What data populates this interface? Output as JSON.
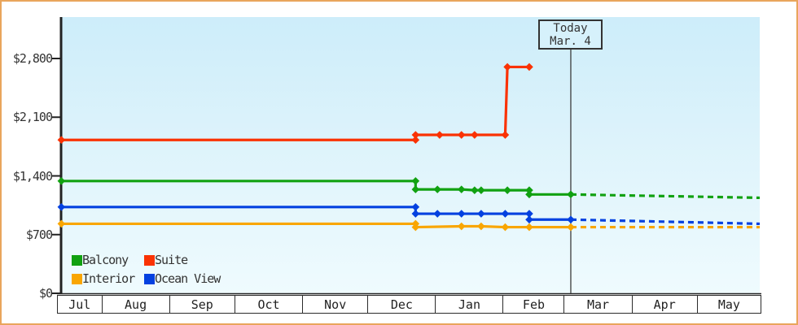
{
  "chart_data": {
    "type": "line",
    "title": "",
    "y_axis": {
      "tick_labels": [
        "$0",
        "$700",
        "$1,400",
        "$2,100",
        "$2,800"
      ],
      "tick_values": [
        0,
        700,
        1400,
        2100,
        2800
      ],
      "ylim": [
        0,
        3290
      ],
      "grid": "off"
    },
    "x_axis": {
      "start": "Jul 12",
      "end": "May 30",
      "months": [
        {
          "label": "Jul",
          "days": 31
        },
        {
          "label": "Aug",
          "days": 31
        },
        {
          "label": "Sep",
          "days": 30
        },
        {
          "label": "Oct",
          "days": 31
        },
        {
          "label": "Nov",
          "days": 30
        },
        {
          "label": "Dec",
          "days": 31
        },
        {
          "label": "Jan",
          "days": 31
        },
        {
          "label": "Feb",
          "days": 28
        },
        {
          "label": "Mar",
          "days": 31
        },
        {
          "label": "Apr",
          "days": 30
        },
        {
          "label": "May",
          "days": 31
        }
      ]
    },
    "today_marker": {
      "line1": "Today",
      "line2": "Mar. 4",
      "date": "Mar 4"
    },
    "legend_position": "bottom-left",
    "series": [
      {
        "name": "Balcony",
        "color": "#11a111",
        "points": [
          {
            "date": "Jul 14",
            "value": 1339
          },
          {
            "date": "Dec 23",
            "value": 1339
          },
          {
            "date": "Dec 23",
            "value": 1239
          },
          {
            "date": "Jan 2",
            "value": 1239
          },
          {
            "date": "Jan 13",
            "value": 1239
          },
          {
            "date": "Jan 19",
            "value": 1229
          },
          {
            "date": "Jan 22",
            "value": 1229
          },
          {
            "date": "Feb 3",
            "value": 1229
          },
          {
            "date": "Feb 13",
            "value": 1229
          },
          {
            "date": "Feb 13",
            "value": 1179
          },
          {
            "date": "Mar 4",
            "value": 1179
          }
        ],
        "projected": [
          {
            "date": "Mar 4",
            "value": 1179
          },
          {
            "date": "May 30",
            "value": 1139
          }
        ]
      },
      {
        "name": "Suite",
        "color": "#fa3203",
        "points": [
          {
            "date": "Jul 14",
            "value": 1829
          },
          {
            "date": "Dec 23",
            "value": 1829
          },
          {
            "date": "Dec 23",
            "value": 1889
          },
          {
            "date": "Jan 3",
            "value": 1889
          },
          {
            "date": "Jan 13",
            "value": 1889
          },
          {
            "date": "Jan 19",
            "value": 1889
          },
          {
            "date": "Feb 2",
            "value": 1889
          },
          {
            "date": "Feb 3",
            "value": 2699
          },
          {
            "date": "Feb 13",
            "value": 2699
          }
        ],
        "projected": []
      },
      {
        "name": "Interior",
        "color": "#f9a602",
        "points": [
          {
            "date": "Jul 14",
            "value": 829
          },
          {
            "date": "Dec 23",
            "value": 829
          },
          {
            "date": "Dec 23",
            "value": 789
          },
          {
            "date": "Jan 13",
            "value": 799
          },
          {
            "date": "Jan 22",
            "value": 799
          },
          {
            "date": "Feb 2",
            "value": 789
          },
          {
            "date": "Feb 13",
            "value": 789
          },
          {
            "date": "Mar 4",
            "value": 789
          }
        ],
        "projected": [
          {
            "date": "Mar 4",
            "value": 789
          },
          {
            "date": "May 30",
            "value": 789
          }
        ]
      },
      {
        "name": "Ocean View",
        "color": "#0341e0",
        "points": [
          {
            "date": "Jul 14",
            "value": 1029
          },
          {
            "date": "Dec 23",
            "value": 1029
          },
          {
            "date": "Dec 23",
            "value": 949
          },
          {
            "date": "Jan 2",
            "value": 949
          },
          {
            "date": "Jan 13",
            "value": 949
          },
          {
            "date": "Jan 22",
            "value": 949
          },
          {
            "date": "Feb 2",
            "value": 949
          },
          {
            "date": "Feb 13",
            "value": 949
          },
          {
            "date": "Feb 13",
            "value": 879
          },
          {
            "date": "Mar 4",
            "value": 879
          }
        ],
        "projected": [
          {
            "date": "Mar 4",
            "value": 879
          },
          {
            "date": "May 30",
            "value": 829
          }
        ]
      }
    ],
    "colors": {
      "frame_border": "#e9a55c",
      "plot_bg_top": "#cdedfa",
      "plot_bg_bottom": "#effbfe",
      "axis": "#222222",
      "text": "#333333",
      "today_line": "#3c3c3c",
      "today_box_bg": "#d6f1fb"
    }
  }
}
